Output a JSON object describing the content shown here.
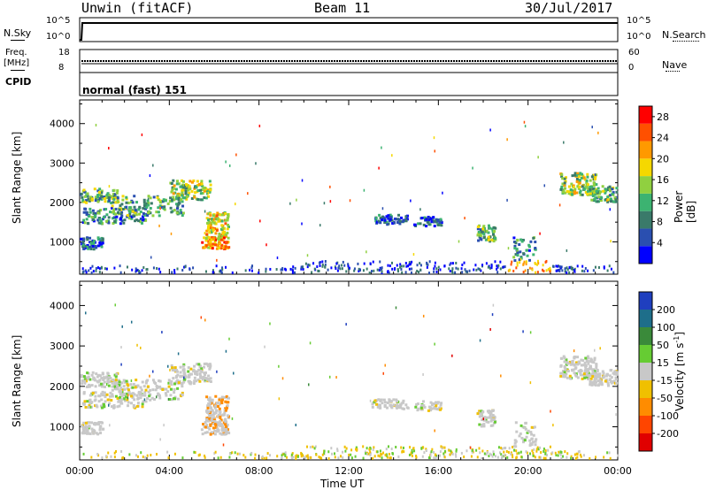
{
  "header": {
    "title": "Unwin (fitACF)",
    "beam": "Beam 11",
    "date": "30/Jul/2017"
  },
  "top_panels": {
    "nsky_label": "N.Sky",
    "nsky_ticks": [
      "10^5",
      "10^0"
    ],
    "nsearch_label": "N.Search",
    "nsearch_ticks": [
      "10^5",
      "10^0"
    ],
    "freq_label": "Freq.",
    "freq_unit": "[MHz]",
    "freq_ticks": [
      "18",
      "8"
    ],
    "nave_label": "Nave",
    "nave_ticks": [
      "60",
      "0"
    ],
    "cpid_label": "CPID",
    "cpid_value": "normal (fast) 151"
  },
  "chart_data": [
    {
      "type": "heatmap",
      "name": "power",
      "ylabel": "Slant Range [km]",
      "ylim": [
        180,
        4600
      ],
      "yticks": [
        "1000",
        "2000",
        "3000",
        "4000"
      ],
      "ytick_values": [
        1000,
        2000,
        3000,
        4000
      ],
      "xticks": [
        "00:00",
        "04:00",
        "08:00",
        "12:00",
        "16:00",
        "20:00",
        "00:00"
      ],
      "xlim_hours": [
        0,
        24
      ],
      "colorbar": {
        "label": "Power [dB]",
        "ticks": [
          "4",
          "8",
          "12",
          "16",
          "20",
          "24",
          "28"
        ],
        "tick_values": [
          4,
          8,
          12,
          16,
          20,
          24,
          28
        ],
        "range": [
          0,
          30
        ],
        "colors": [
          "#0000ff",
          "#2a4fb0",
          "#3a7a6a",
          "#3cb371",
          "#90d040",
          "#f5d800",
          "#ff9900",
          "#ff5000",
          "#ff0000"
        ]
      }
    },
    {
      "type": "heatmap",
      "name": "velocity",
      "ylabel": "Slant Range [km]",
      "ylim": [
        180,
        4600
      ],
      "yticks": [
        "1000",
        "2000",
        "3000",
        "4000"
      ],
      "ytick_values": [
        1000,
        2000,
        3000,
        4000
      ],
      "xticks": [
        "00:00",
        "04:00",
        "08:00",
        "12:00",
        "16:00",
        "20:00",
        "00:00"
      ],
      "xlim_hours": [
        0,
        24
      ],
      "colorbar": {
        "label": "Velocity [m s",
        "label_sup": "-1",
        "label_end": "]",
        "ticks": [
          "200",
          "100",
          "50",
          "15",
          "-15",
          "-50",
          "-100",
          "-200"
        ],
        "colors": [
          "#1f3fbf",
          "#1e6e8a",
          "#3a8a3a",
          "#66cc33",
          "#c8c8c8",
          "#f0c000",
          "#ff8c00",
          "#ff4500",
          "#e00000"
        ]
      }
    }
  ],
  "xlabel": "Time UT"
}
